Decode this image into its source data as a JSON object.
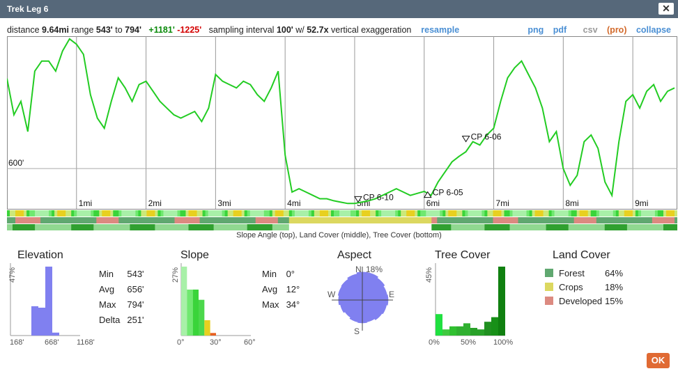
{
  "window": {
    "title": "Trek Leg 6",
    "close_label": "✕"
  },
  "stats": {
    "distance_label": "distance",
    "distance": "9.64mi",
    "range_label": "range",
    "range_min": "543'",
    "to_label": "to",
    "range_max": "794'",
    "gain": "+1181'",
    "loss": "-1225'",
    "interval_label": "sampling interval",
    "interval": "100'",
    "with_label": "w/",
    "exaggeration": "52.7x",
    "exaggeration_label": "vertical exaggeration",
    "resample": "resample"
  },
  "actions": {
    "png": "png",
    "pdf": "pdf",
    "csv": "csv",
    "pro": "(pro)",
    "collapse": "collapse"
  },
  "chart_data": {
    "type": "line",
    "series": [
      {
        "x": [
          0,
          0.1,
          0.2,
          0.3,
          0.4,
          0.5,
          0.6,
          0.7,
          0.8,
          0.9,
          1.0,
          1.1,
          1.2,
          1.3,
          1.4,
          1.5,
          1.6,
          1.7,
          1.8,
          1.9,
          2.0,
          2.1,
          2.2,
          2.3,
          2.4,
          2.5,
          2.6,
          2.7,
          2.8,
          2.9,
          3.0,
          3.1,
          3.2,
          3.3,
          3.4,
          3.5,
          3.6,
          3.7,
          3.8,
          3.9,
          4.0,
          4.1,
          4.2,
          4.3,
          4.4,
          4.5,
          4.6,
          4.7,
          4.8,
          4.9,
          5.0,
          5.1,
          5.2,
          5.3,
          5.4,
          5.5,
          5.6,
          5.7,
          5.8,
          5.9,
          6.0,
          6.1,
          6.2,
          6.3,
          6.4,
          6.5,
          6.6,
          6.7,
          6.8,
          6.9,
          7.0,
          7.1,
          7.2,
          7.3,
          7.4,
          7.5,
          7.6,
          7.7,
          7.8,
          7.9,
          8.0,
          8.1,
          8.2,
          8.3,
          8.4,
          8.5,
          8.6,
          8.7,
          8.8,
          8.9,
          9.0,
          9.1,
          9.2,
          9.3,
          9.4,
          9.5,
          9.6
        ],
        "y": [
          734,
          680,
          700,
          655,
          745,
          760,
          760,
          745,
          775,
          793,
          785,
          770,
          710,
          675,
          660,
          700,
          735,
          720,
          700,
          725,
          730,
          715,
          700,
          690,
          680,
          675,
          680,
          685,
          670,
          690,
          740,
          730,
          725,
          720,
          730,
          725,
          710,
          700,
          720,
          745,
          620,
          565,
          570,
          565,
          560,
          555,
          555,
          552,
          550,
          548,
          548,
          550,
          552,
          555,
          560,
          565,
          570,
          565,
          560,
          563,
          566,
          560,
          580,
          595,
          610,
          618,
          625,
          640,
          635,
          650,
          660,
          700,
          735,
          750,
          760,
          740,
          720,
          690,
          640,
          655,
          600,
          575,
          590,
          640,
          650,
          630,
          580,
          560,
          640,
          700,
          710,
          690,
          715,
          725,
          700,
          715,
          720
        ]
      }
    ],
    "xlabel": "",
    "ylabel": "",
    "x_ticks": [
      "1mi",
      "2mi",
      "3mi",
      "4mi",
      "5mi",
      "6mi",
      "7mi",
      "8mi",
      "9mi"
    ],
    "y_ref_label": "600'",
    "y_ref": 600,
    "ylim": [
      543,
      794
    ],
    "xlim": [
      0,
      9.64
    ],
    "markers": [
      {
        "label": "CP 6-10",
        "x": 5.05,
        "y": 550,
        "shape": "down"
      },
      {
        "label": "CP 6-05",
        "x": 6.05,
        "y": 557,
        "shape": "up"
      },
      {
        "label": "CP 6-06",
        "x": 6.6,
        "y": 640,
        "shape": "down"
      }
    ],
    "grid": true
  },
  "bars_caption": "Slope Angle (top), Land Cover (middle), Tree Cover (bottom)",
  "elevation": {
    "title": "Elevation",
    "y_axis": "47%",
    "x_min": "168'",
    "x_mid": "668'",
    "x_max": "1168'",
    "rows": [
      {
        "k": "Min",
        "v": "543'"
      },
      {
        "k": "Avg",
        "v": "656'"
      },
      {
        "k": "Max",
        "v": "794'"
      },
      {
        "k": "Delta",
        "v": "251'"
      }
    ],
    "hist": [
      0,
      0,
      0,
      20,
      19,
      47,
      2,
      0,
      0,
      0
    ],
    "color": "#8080f0"
  },
  "slope": {
    "title": "Slope",
    "y_axis": "27%",
    "x_min": "0°",
    "x_mid": "30°",
    "x_max": "60°",
    "rows": [
      {
        "k": "Min",
        "v": "0°"
      },
      {
        "k": "Avg",
        "v": "12°"
      },
      {
        "k": "Max",
        "v": "34°"
      }
    ],
    "hist": [
      27,
      18,
      18,
      14,
      6,
      1,
      0,
      0,
      0,
      0,
      0,
      0
    ],
    "colors": [
      "#a8f0a8",
      "#70e870",
      "#3ad43a",
      "#4cd84c",
      "#e8d020",
      "#e86020",
      "#d02020",
      "#aa0000",
      "#aa0000",
      "#aa0000",
      "#aa0000",
      "#aa0000"
    ]
  },
  "aspect": {
    "title": "Aspect",
    "n": "N",
    "e": "E",
    "s": "S",
    "w": "W",
    "max_pct": "18%",
    "petals": [
      1,
      1,
      0.95,
      0.9,
      0.92,
      0.88,
      0.85,
      0.8,
      0.82,
      0.8,
      0.75,
      0.8,
      0.85,
      0.88,
      0.9,
      0.95
    ],
    "color": "#8080f0"
  },
  "tree_cover": {
    "title": "Tree Cover",
    "y_axis": "45%",
    "x_min": "0%",
    "x_mid": "50%",
    "x_max": "100%",
    "hist": [
      14,
      4,
      6,
      6,
      8,
      5,
      4,
      9,
      12,
      45
    ],
    "colors": [
      "#20e040",
      "#40c840",
      "#30c030",
      "#30b030",
      "#30b030",
      "#28a028",
      "#28a028",
      "#209020",
      "#189018",
      "#108010"
    ]
  },
  "land_cover": {
    "title": "Land Cover",
    "items": [
      {
        "name": "Forest",
        "pct": "64%",
        "color": "#60a870"
      },
      {
        "name": "Crops",
        "pct": "18%",
        "color": "#dcd860"
      },
      {
        "name": "Developed",
        "pct": "15%",
        "color": "#dc8a80"
      }
    ]
  },
  "ok_label": "OK"
}
